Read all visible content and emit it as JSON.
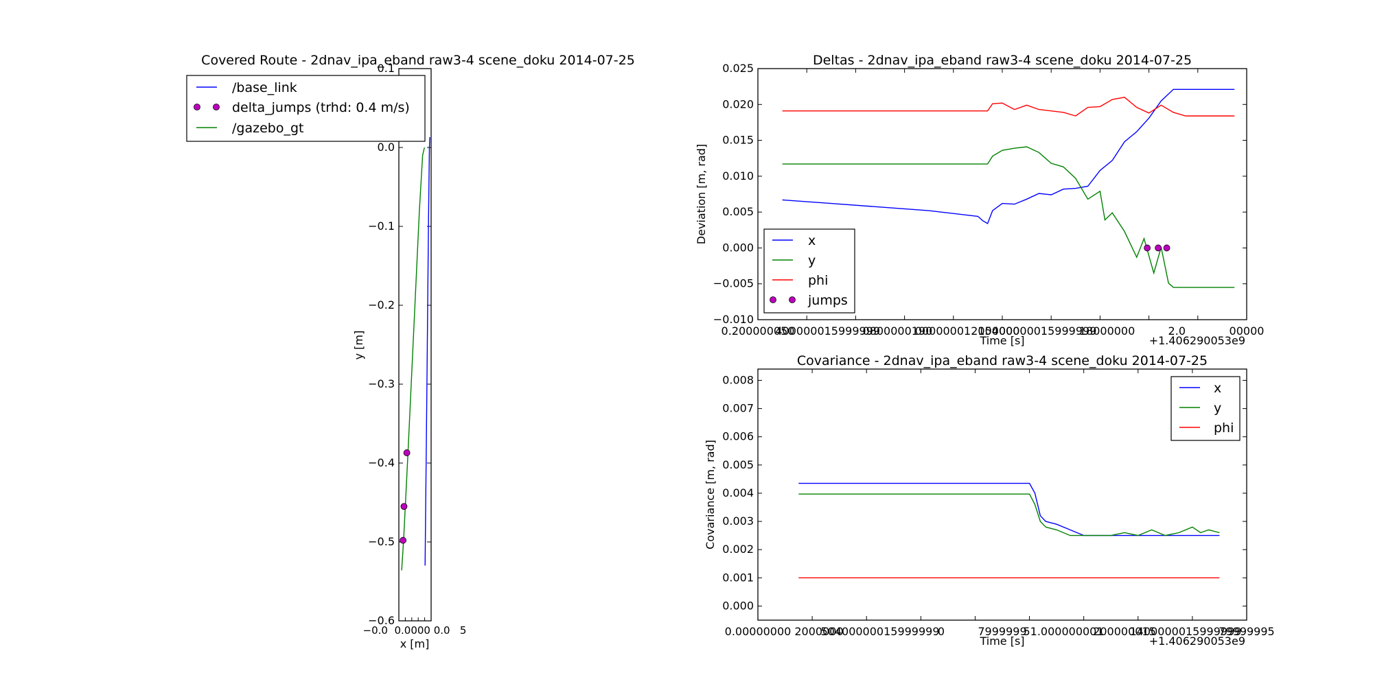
{
  "chart_data": [
    {
      "type": "line",
      "title": "Covered Route - 2dnav_ipa_eband raw3-4 scene_doku 2014-07-25",
      "xlabel": "x [m]",
      "ylabel": "y [m]",
      "xlim": [
        -0.012,
        0.005
      ],
      "ylim": [
        -0.6,
        0.1
      ],
      "yticks": [
        0.1,
        0.0,
        -0.1,
        -0.2,
        -0.3,
        -0.4,
        -0.5,
        -0.6
      ],
      "ytick_labels": [
        "0.1",
        "0.0",
        "−0.1",
        "−0.2",
        "−0.3",
        "−0.4",
        "−0.5",
        "−0.6"
      ],
      "xtick_labels_overlap": "−0.0  0.0000 0.0   5",
      "legend": {
        "placement": "upper-left",
        "entries": [
          "/base_link",
          "delta_jumps (trhd: 0.4 m/s)",
          "/gazebo_gt"
        ]
      },
      "series": [
        {
          "name": "/base_link",
          "color": "#0000ff",
          "x": [
            0.0018,
            0.0028,
            0.0036,
            0.0041,
            0.0043
          ],
          "y": [
            -0.53,
            -0.3,
            -0.1,
            0.0,
            0.013
          ]
        },
        {
          "name": "/gazebo_gt",
          "color": "#008000",
          "x": [
            -0.0105,
            -0.0095,
            -0.0072,
            -0.0045,
            -0.0012,
            0.0005,
            0.0015
          ],
          "y": [
            -0.536,
            -0.498,
            -0.387,
            -0.25,
            -0.08,
            -0.01,
            0.0
          ]
        },
        {
          "name": "delta_jumps (trhd: 0.4 m/s)",
          "color": "#bf00bf",
          "marker": "circle",
          "x": [
            -0.0098,
            -0.0093,
            -0.0078
          ],
          "y": [
            -0.498,
            -0.455,
            -0.387
          ]
        }
      ]
    },
    {
      "type": "line",
      "title": "Deltas - 2dnav_ipa_eband raw3-4 scene_doku 2014-07-25",
      "xlabel": "Time [s]",
      "ylabel": "Deviation [m, rad]",
      "offset_label": "+1.406290053e9",
      "ylim": [
        -0.01,
        0.025
      ],
      "yticks": [
        0.025,
        0.02,
        0.015,
        0.01,
        0.005,
        0.0,
        -0.005,
        -0.01
      ],
      "ytick_labels": [
        "0.025",
        "0.020",
        "0.015",
        "0.010",
        "0.005",
        "0.000",
        "−0.005",
        "−0.010"
      ],
      "xtick_labels": [
        "0.200000050.400000015999999",
        "0.600000019",
        "0.80000001",
        "1.00000001",
        "1.200000015",
        "1.400000015999999",
        "1.6",
        "1.80000002",
        "000000"
      ],
      "xtick_text": [
        "0.200000050",
        "400000015999999",
        "0800000190",
        "000000012000000",
        "15400000015999999",
        "18000000",
        "2.0",
        "00000"
      ],
      "xlim": [
        0.2,
        2.2
      ],
      "legend": {
        "placement": "lower-left",
        "entries": [
          "x",
          "y",
          "phi",
          "jumps"
        ]
      },
      "series": [
        {
          "name": "x",
          "color": "#0000ff",
          "x": [
            0.3,
            0.5,
            0.7,
            0.9,
            1.1,
            1.12,
            1.14,
            1.16,
            1.2,
            1.25,
            1.3,
            1.35,
            1.4,
            1.45,
            1.5,
            1.55,
            1.6,
            1.65,
            1.7,
            1.75,
            1.8,
            1.85,
            1.9,
            1.95,
            2.0,
            2.05,
            2.1,
            2.15
          ],
          "y": [
            0.0067,
            0.0062,
            0.0057,
            0.0052,
            0.0044,
            0.0038,
            0.0034,
            0.0052,
            0.0062,
            0.0061,
            0.0068,
            0.0076,
            0.0074,
            0.0082,
            0.0083,
            0.0086,
            0.0108,
            0.0122,
            0.0148,
            0.0162,
            0.0181,
            0.0205,
            0.0221,
            0.0221,
            0.0221,
            0.0221,
            0.0221,
            0.0221
          ]
        },
        {
          "name": "y",
          "color": "#008000",
          "x": [
            0.3,
            0.5,
            0.7,
            0.9,
            1.1,
            1.14,
            1.16,
            1.2,
            1.25,
            1.3,
            1.35,
            1.4,
            1.45,
            1.5,
            1.55,
            1.6,
            1.62,
            1.65,
            1.7,
            1.75,
            1.78,
            1.82,
            1.85,
            1.88,
            1.9,
            1.93,
            1.96,
            2.0,
            2.05,
            2.1,
            2.15
          ],
          "y": [
            0.0117,
            0.0117,
            0.0117,
            0.0117,
            0.0117,
            0.0117,
            0.0128,
            0.0136,
            0.0139,
            0.0141,
            0.0133,
            0.0118,
            0.0113,
            0.0097,
            0.0068,
            0.0079,
            0.0039,
            0.0049,
            0.0023,
            -0.0013,
            0.0013,
            -0.0035,
            0.0001,
            -0.0049,
            -0.0055,
            -0.0055,
            -0.0055,
            -0.0055,
            -0.0055,
            -0.0055,
            -0.0055
          ]
        },
        {
          "name": "phi",
          "color": "#ff0000",
          "x": [
            0.3,
            0.5,
            0.7,
            0.9,
            1.1,
            1.14,
            1.16,
            1.2,
            1.25,
            1.3,
            1.35,
            1.4,
            1.45,
            1.5,
            1.55,
            1.6,
            1.65,
            1.7,
            1.75,
            1.8,
            1.85,
            1.9,
            1.95,
            2.0,
            2.05,
            2.1,
            2.15
          ],
          "y": [
            0.0191,
            0.0191,
            0.0191,
            0.0191,
            0.0191,
            0.0191,
            0.0201,
            0.0202,
            0.0193,
            0.0199,
            0.0193,
            0.0191,
            0.0189,
            0.0184,
            0.0196,
            0.0197,
            0.0207,
            0.021,
            0.0196,
            0.0188,
            0.0199,
            0.0189,
            0.0184,
            0.0184,
            0.0184,
            0.0184,
            0.0184
          ]
        },
        {
          "name": "jumps",
          "color": "#bf00bf",
          "marker": "circle",
          "x": [
            1.793,
            1.838,
            1.873
          ],
          "y": [
            0.0,
            0.0,
            0.0
          ]
        }
      ]
    },
    {
      "type": "line",
      "title": "Covariance - 2dnav_ipa_eband raw3-4 scene_doku 2014-07-25",
      "xlabel": "Time [s]",
      "ylabel": "Covariance [m, rad]",
      "offset_label": "+1.406290053e9",
      "ylim": [
        -0.0005,
        0.0084
      ],
      "yticks": [
        0.008,
        0.007,
        0.006,
        0.005,
        0.004,
        0.003,
        0.002,
        0.001,
        0.0
      ],
      "ytick_labels": [
        "0.008",
        "0.007",
        "0.006",
        "0.005",
        "0.004",
        "0.003",
        "0.002",
        "0.001",
        "0.000"
      ],
      "xtick_text": [
        "0.00000000",
        "2000000",
        "50400000015999999",
        "0",
        "7999999",
        "51.000000001",
        "200000015",
        "1400000015999999",
        "79999995"
      ],
      "xlim": [
        0.0,
        1.8
      ],
      "legend": {
        "placement": "upper-right",
        "entries": [
          "x",
          "y",
          "phi"
        ]
      },
      "series": [
        {
          "name": "x",
          "color": "#0000ff",
          "x": [
            0.15,
            0.4,
            0.7,
            1.0,
            1.02,
            1.04,
            1.06,
            1.1,
            1.15,
            1.2,
            1.3,
            1.4,
            1.5,
            1.6,
            1.7
          ],
          "y": [
            0.00435,
            0.00435,
            0.00435,
            0.00435,
            0.004,
            0.0032,
            0.003,
            0.0029,
            0.0027,
            0.0025,
            0.0025,
            0.0025,
            0.0025,
            0.0025,
            0.0025
          ]
        },
        {
          "name": "y",
          "color": "#008000",
          "x": [
            0.15,
            0.4,
            0.7,
            1.0,
            1.02,
            1.04,
            1.06,
            1.1,
            1.15,
            1.2,
            1.3,
            1.35,
            1.4,
            1.45,
            1.5,
            1.55,
            1.6,
            1.63,
            1.66,
            1.7
          ],
          "y": [
            0.00397,
            0.00397,
            0.00397,
            0.00397,
            0.0036,
            0.003,
            0.0028,
            0.0027,
            0.0025,
            0.0025,
            0.0025,
            0.0026,
            0.0025,
            0.0027,
            0.0025,
            0.0026,
            0.0028,
            0.0026,
            0.0027,
            0.0026
          ]
        },
        {
          "name": "phi",
          "color": "#ff0000",
          "x": [
            0.15,
            0.4,
            0.7,
            1.0,
            1.3,
            1.5,
            1.7
          ],
          "y": [
            0.001,
            0.001,
            0.001,
            0.001,
            0.001,
            0.001,
            0.001
          ]
        }
      ]
    }
  ]
}
